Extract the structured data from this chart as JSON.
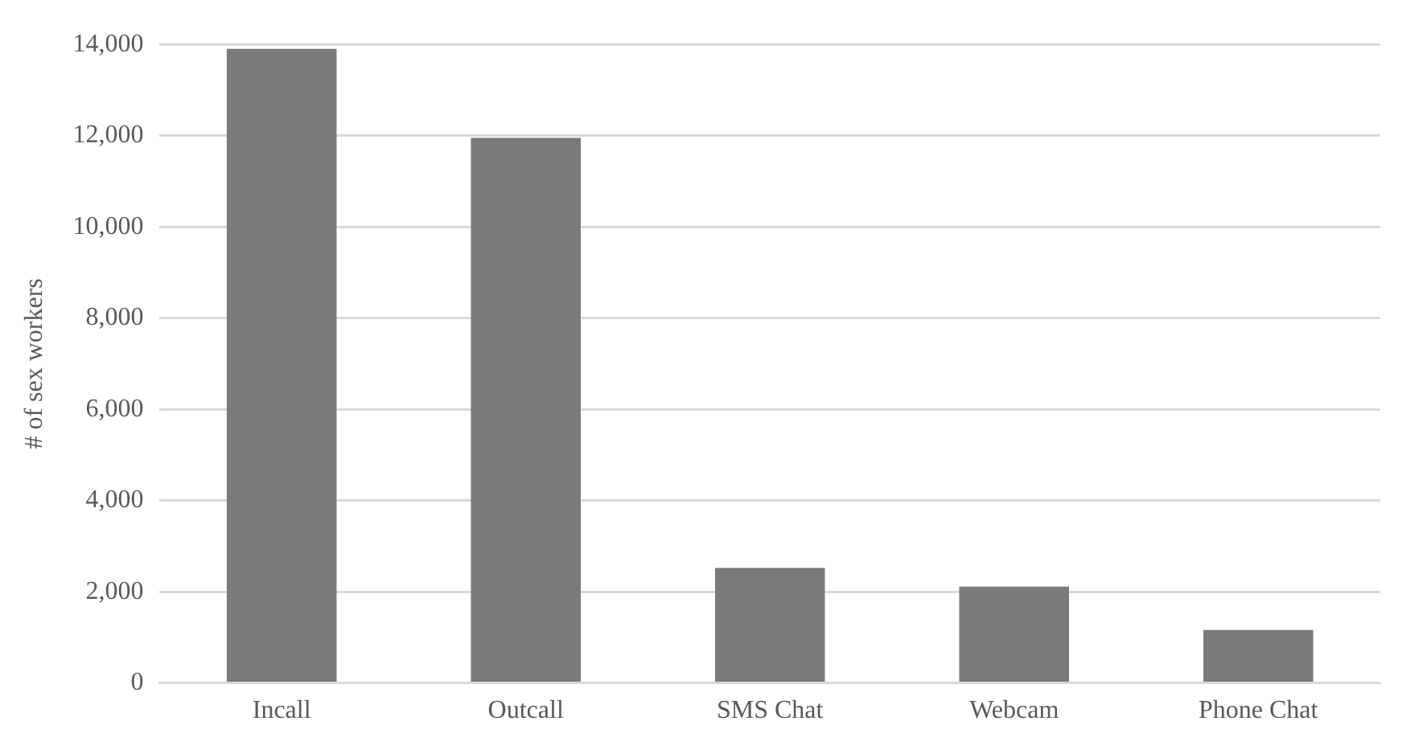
{
  "chart_data": {
    "type": "bar",
    "ylabel": "# of sex workers",
    "categories": [
      "Incall",
      "Outcall",
      "SMS Chat",
      "Webcam",
      "Phone Chat"
    ],
    "values": [
      13900,
      11950,
      2520,
      2110,
      1160
    ],
    "color": "#7a7a7a",
    "ylim": [
      0,
      14000
    ],
    "yticks": [
      {
        "value": 0,
        "label": "0"
      },
      {
        "value": 2000,
        "label": "2,000"
      },
      {
        "value": 4000,
        "label": "4,000"
      },
      {
        "value": 6000,
        "label": "6,000"
      },
      {
        "value": 8000,
        "label": "8,000"
      },
      {
        "value": 10000,
        "label": "10,000"
      },
      {
        "value": 12000,
        "label": "12,000"
      },
      {
        "value": 14000,
        "label": "14,000"
      }
    ],
    "grid": "y",
    "legend": false
  }
}
